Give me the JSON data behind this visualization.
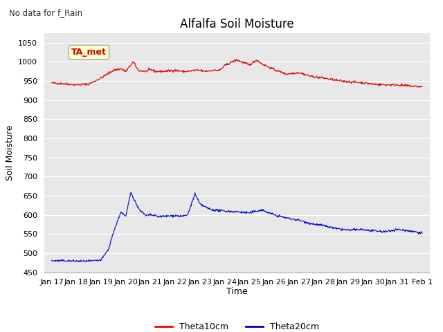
{
  "title": "Alfalfa Soil Moisture",
  "top_left_text": "No data for f_Rain",
  "ylabel": "Soil Moisture",
  "xlabel": "Time",
  "ylim": [
    450,
    1075
  ],
  "yticks": [
    450,
    500,
    550,
    600,
    650,
    700,
    750,
    800,
    850,
    900,
    950,
    1000,
    1050
  ],
  "annotation_label": "TA_met",
  "annotation_box_color": "#ffffcc",
  "annotation_box_edge": "#999900",
  "annotation_text_color": "#cc0000",
  "bg_color": "#e8e8e8",
  "legend_labels": [
    "Theta10cm",
    "Theta20cm"
  ],
  "legend_colors": [
    "#ff0000",
    "#0000cc"
  ],
  "line1_color": "#dd0000",
  "line2_color": "#0000cc",
  "xtick_labels": [
    "Jan 17",
    "Jan 18",
    "Jan 19",
    "Jan 20",
    "Jan 21",
    "Jan 22",
    "Jan 23",
    "Jan 24",
    "Jan 25",
    "Jan 26",
    "Jan 27",
    "Jan 28",
    "Jan 29",
    "Jan 30",
    "Jan 31",
    "Feb 1"
  ],
  "theta10_xknots": [
    0,
    0.5,
    1.0,
    1.5,
    2.0,
    2.5,
    2.8,
    3.0,
    3.3,
    3.5,
    3.8,
    4.0,
    4.2,
    4.5,
    5.0,
    5.3,
    5.5,
    5.8,
    6.0,
    6.2,
    6.5,
    6.8,
    7.0,
    7.3,
    7.5,
    8.0,
    8.3,
    8.5,
    9.0,
    9.5,
    10.0,
    10.5,
    11.0,
    11.5,
    12.0,
    12.5,
    13.0,
    13.5,
    14.0,
    14.5,
    15.0
  ],
  "theta10_yknots": [
    945,
    943,
    940,
    942,
    958,
    978,
    982,
    975,
    1000,
    978,
    975,
    980,
    975,
    975,
    978,
    975,
    975,
    978,
    978,
    975,
    978,
    978,
    990,
    1000,
    1005,
    992,
    1005,
    995,
    980,
    968,
    972,
    962,
    958,
    952,
    948,
    946,
    942,
    940,
    940,
    937,
    935
  ],
  "theta20_xknots": [
    0,
    0.5,
    1.0,
    1.5,
    1.8,
    2.0,
    2.3,
    2.5,
    2.8,
    3.0,
    3.2,
    3.5,
    3.8,
    4.0,
    4.3,
    4.5,
    5.0,
    5.3,
    5.5,
    5.8,
    6.0,
    6.3,
    6.5,
    7.0,
    7.5,
    8.0,
    8.3,
    8.5,
    9.0,
    9.5,
    10.0,
    10.5,
    11.0,
    11.5,
    12.0,
    12.5,
    13.0,
    13.5,
    14.0,
    14.5,
    15.0
  ],
  "theta20_yknots": [
    480,
    480,
    479,
    479,
    480,
    482,
    510,
    555,
    608,
    595,
    660,
    618,
    598,
    600,
    596,
    596,
    598,
    596,
    600,
    655,
    628,
    618,
    613,
    610,
    608,
    605,
    610,
    613,
    600,
    592,
    586,
    577,
    572,
    564,
    560,
    562,
    558,
    556,
    562,
    558,
    553
  ]
}
